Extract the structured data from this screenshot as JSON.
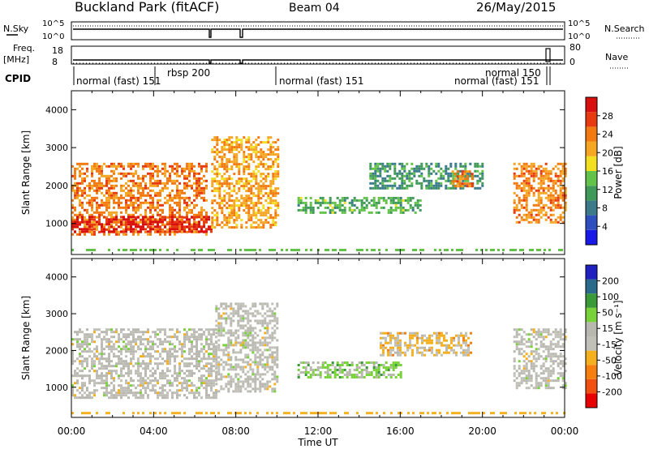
{
  "header": {
    "station": "Buckland Park (fitACF)",
    "beam": "Beam 04",
    "date": "26/May/2015"
  },
  "summary_panels": {
    "nsky_label": "N.Sky",
    "nsky_ticks": [
      "10^5",
      "10^0"
    ],
    "nsky_right_ticks": [
      "10^5",
      "10^0"
    ],
    "nsearch_label": "N.Search",
    "freq_label_1": "Freq.",
    "freq_label_2": "[MHz]",
    "freq_ticks": [
      "18",
      "8"
    ],
    "nave_ticks": [
      "80",
      "0"
    ],
    "nave_label": "Nave",
    "cpid_label": "CPID",
    "cpid_segments": [
      {
        "text": "normal (fast) 151"
      },
      {
        "text": "rbsp 200"
      },
      {
        "text": "normal (fast) 151"
      },
      {
        "text": "normal 150"
      },
      {
        "text": "normal (fast) 151"
      }
    ]
  },
  "colors": {
    "power_scale": [
      "#1818e8",
      "#2f4fbf",
      "#3a7a8a",
      "#3f9a5a",
      "#62c24a",
      "#f2e020",
      "#f5a623",
      "#f27a10",
      "#e83a10",
      "#d81010"
    ],
    "velocity_scale": [
      "#e80000",
      "#f05010",
      "#f58010",
      "#f5b020",
      "#c0c0b8",
      "#b8b8b0",
      "#7ad23a",
      "#3a9a3a",
      "#2a6a8a",
      "#2020c0"
    ],
    "frame": "#000000"
  },
  "chart_data": [
    {
      "type": "heatmap",
      "title": "",
      "xlabel": "Time UT",
      "ylabel": "Slant Range [km]",
      "xlim": [
        "00:00",
        "24:00"
      ],
      "ylim": [
        180,
        4500
      ],
      "x_ticks": [
        "00:00",
        "04:00",
        "08:00",
        "12:00",
        "16:00",
        "20:00",
        "00:00"
      ],
      "y_ticks": [
        "1000",
        "2000",
        "3000",
        "4000"
      ],
      "colorbar": {
        "label": "Power [dB]",
        "ticks": [
          "28",
          "24",
          "20",
          "16",
          "12",
          "8",
          "4"
        ],
        "range": [
          0,
          30
        ]
      },
      "echo_regions": [
        {
          "t_start": 0.0,
          "t_end": 6.6,
          "range_min": 700,
          "range_max": 2600,
          "value": 22
        },
        {
          "t_start": 0.0,
          "t_end": 6.8,
          "range_min": 800,
          "range_max": 1200,
          "value": 28
        },
        {
          "t_start": 6.8,
          "t_end": 10.0,
          "range_min": 900,
          "range_max": 3300,
          "value": 20
        },
        {
          "t_start": 11.0,
          "t_end": 17.0,
          "range_min": 1300,
          "range_max": 1700,
          "value": 12
        },
        {
          "t_start": 14.5,
          "t_end": 20.0,
          "range_min": 1900,
          "range_max": 2600,
          "value": 10
        },
        {
          "t_start": 18.5,
          "t_end": 19.5,
          "range_min": 2000,
          "range_max": 2400,
          "value": 22
        },
        {
          "t_start": 21.5,
          "t_end": 24.0,
          "range_min": 1000,
          "range_max": 2600,
          "value": 22
        }
      ]
    },
    {
      "type": "heatmap",
      "title": "",
      "xlabel": "Time UT",
      "ylabel": "Slant Range [km]",
      "xlim": [
        "00:00",
        "24:00"
      ],
      "ylim": [
        180,
        4500
      ],
      "x_ticks": [
        "00:00",
        "04:00",
        "08:00",
        "12:00",
        "16:00",
        "20:00",
        "00:00"
      ],
      "y_ticks": [
        "1000",
        "2000",
        "3000",
        "4000"
      ],
      "colorbar": {
        "label": "Velocity [m s⁻¹]",
        "ticks": [
          "200",
          "100",
          "50",
          "15",
          "-15",
          "-50",
          "-100",
          "-200"
        ],
        "range": [
          -250,
          250
        ]
      },
      "echo_regions": [
        {
          "t_start": 0.0,
          "t_end": 7.0,
          "range_min": 700,
          "range_max": 2600,
          "value": 0
        },
        {
          "t_start": 7.0,
          "t_end": 10.0,
          "range_min": 900,
          "range_max": 3300,
          "value": 0
        },
        {
          "t_start": 11.0,
          "t_end": 16.0,
          "range_min": 1300,
          "range_max": 1700,
          "value": 60
        },
        {
          "t_start": 15.0,
          "t_end": 19.5,
          "range_min": 1900,
          "range_max": 2500,
          "value": -50
        },
        {
          "t_start": 21.5,
          "t_end": 24.0,
          "range_min": 1000,
          "range_max": 2600,
          "value": 0
        }
      ]
    }
  ]
}
